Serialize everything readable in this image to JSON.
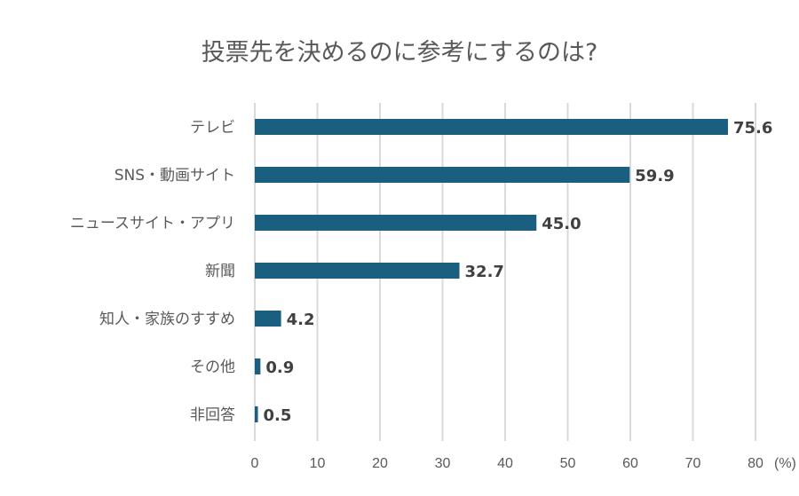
{
  "chart_data": {
    "type": "bar",
    "orientation": "horizontal",
    "title": "投票先を決めるのに参考にするのは?",
    "categories": [
      "テレビ",
      "SNS・動画サイト",
      "ニュースサイト・アプリ",
      "新聞",
      "知人・家族のすすめ",
      "その他",
      "非回答"
    ],
    "values": [
      75.6,
      59.9,
      45.0,
      32.7,
      4.2,
      0.9,
      0.5
    ],
    "value_labels": [
      "75.6",
      "59.9",
      "45.0",
      "32.7",
      "4.2",
      "0.9",
      "0.5"
    ],
    "xlim": [
      0,
      80
    ],
    "xticks": [
      "0",
      "10",
      "20",
      "30",
      "40",
      "50",
      "60",
      "70",
      "80"
    ],
    "xunit": "(%)",
    "grid": "vertical",
    "legend": "none",
    "bar_color": "#1a5e80",
    "grid_color": "#d9d9d9"
  }
}
